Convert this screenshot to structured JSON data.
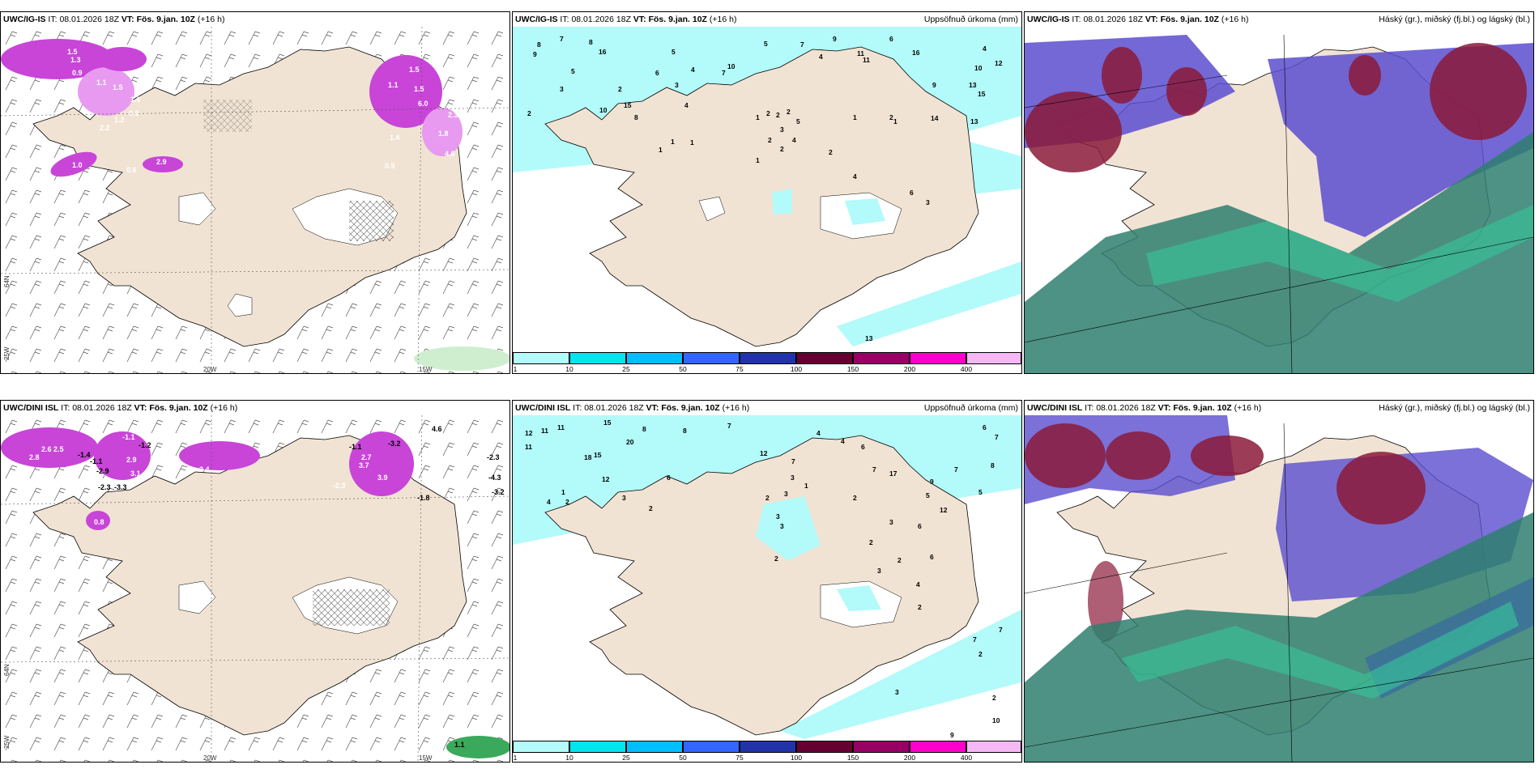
{
  "panels": [
    {
      "id": "p1",
      "model": "UWC/IG-IS",
      "it_label": "IT:",
      "it": "08.01.2026 18Z",
      "vt_label": "VT:",
      "vt": "Fös. 9.jan. 10Z",
      "lead": "(+16 h)",
      "right_title": ""
    },
    {
      "id": "p2",
      "model": "UWC/IG-IS",
      "it_label": "IT:",
      "it": "08.01.2026 18Z",
      "vt_label": "VT:",
      "vt": "Fös. 9.jan. 10Z",
      "lead": "(+16 h)",
      "right_title": "Uppsöfnuð úrkoma (mm)"
    },
    {
      "id": "p3",
      "model": "UWC/IG-IS",
      "it_label": "IT:",
      "it": "08.01.2026 18Z",
      "vt_label": "VT:",
      "vt": "Fös. 9.jan. 10Z",
      "lead": "(+16 h)",
      "right_title": "Háský (gr.), miðský (fj.bl.) og lágský (bl.)"
    },
    {
      "id": "p4",
      "model": "UWC/DINI ISL",
      "it_label": "IT:",
      "it": "08.01.2026 18Z",
      "vt_label": "VT:",
      "vt": "Fös. 9.jan. 10Z",
      "lead": "(+16 h)",
      "right_title": ""
    },
    {
      "id": "p5",
      "model": "UWC/DINI ISL",
      "it_label": "IT:",
      "it": "08.01.2026 18Z",
      "vt_label": "VT:",
      "vt": "Fös. 9.jan. 10Z",
      "lead": "(+16 h)",
      "right_title": "Uppsöfnuð úrkoma (mm)"
    },
    {
      "id": "p6",
      "model": "UWC/DINI ISL",
      "it_label": "IT:",
      "it": "08.01.2026 18Z",
      "vt_label": "VT:",
      "vt": "Fös. 9.jan. 10Z",
      "lead": "(+16 h)",
      "right_title": "Háský (gr.), miðský (fj.bl.) og lágský (bl.)"
    }
  ],
  "axis_labels": {
    "w25": "25W",
    "w20": "20W",
    "w15": "15W",
    "n64": "64N",
    "n65": "65N",
    "n66": "66N"
  },
  "colorbar": {
    "ticks": [
      "1",
      "10",
      "25",
      "50",
      "75",
      "100",
      "150",
      "200",
      "400"
    ],
    "colors": [
      "#b3fafa",
      "#00e5ee",
      "#00bfff",
      "#3366ff",
      "#2233aa",
      "#660033",
      "#990066",
      "#ff00cc",
      "#f5b8f5"
    ]
  },
  "colors": {
    "land": "#f1e3d3",
    "precip_light": "#b3fafa",
    "precip_mid": "#7fe8f0",
    "snow_purple": "#c845d8",
    "snow_light": "#e79af0",
    "cloud_high": "#2e7f6f",
    "cloud_mid": "#5a4ecf",
    "cloud_low": "#8b1a3a"
  },
  "p1_values": [
    "1.5",
    "0.9",
    "2.3",
    "1.3",
    "0.9",
    "1.1",
    "1.5",
    "2.2",
    "1.2",
    "0.6",
    "1.6",
    "1.0",
    "0.6",
    "2.9",
    "1.5",
    "1.1",
    "1.5",
    "6.0",
    "1.4",
    "4.6",
    "2.3",
    "1.8",
    "0.5"
  ],
  "p2_values": [
    "8",
    "7",
    "9",
    "2",
    "3",
    "8",
    "5",
    "16",
    "2",
    "15",
    "10",
    "8",
    "6",
    "5",
    "4",
    "7",
    "3",
    "4",
    "10",
    "5",
    "7",
    "4",
    "9",
    "11",
    "11",
    "16",
    "6",
    "4",
    "12",
    "10",
    "13",
    "15",
    "9",
    "14",
    "13",
    "2",
    "1",
    "1",
    "1",
    "1",
    "1",
    "1",
    "4",
    "2",
    "2",
    "2",
    "2",
    "3",
    "4",
    "5",
    "2",
    "3",
    "6",
    "1",
    "2",
    "13"
  ],
  "p4_values": [
    "3.5",
    "5.0",
    "2.8",
    "2.6",
    "2.5",
    "-1.2",
    "-1.4",
    "-1.1",
    "-2.9",
    "-2.3",
    "-3.3",
    "-1.1",
    "3.1",
    "2.9",
    "3.4",
    "-1.1",
    "-3.2",
    "2.7",
    "3.7",
    "-2.3",
    "3.9",
    "-1.8",
    "-4.3",
    "-3.2",
    "-2.3",
    "0.8",
    "4.6",
    "1.1"
  ],
  "p5_values": [
    "12",
    "11",
    "11",
    "11",
    "15",
    "8",
    "8",
    "7",
    "20",
    "15",
    "12",
    "18",
    "4",
    "2",
    "1",
    "3",
    "2",
    "6",
    "12",
    "7",
    "3",
    "3",
    "2",
    "3",
    "1",
    "4",
    "4",
    "6",
    "7",
    "17",
    "9",
    "5",
    "12",
    "6",
    "7",
    "7",
    "8",
    "5",
    "6",
    "3",
    "2",
    "2",
    "3",
    "2",
    "3",
    "4",
    "2",
    "6",
    "2",
    "7",
    "2",
    "3",
    "2",
    "10",
    "9",
    "7"
  ]
}
